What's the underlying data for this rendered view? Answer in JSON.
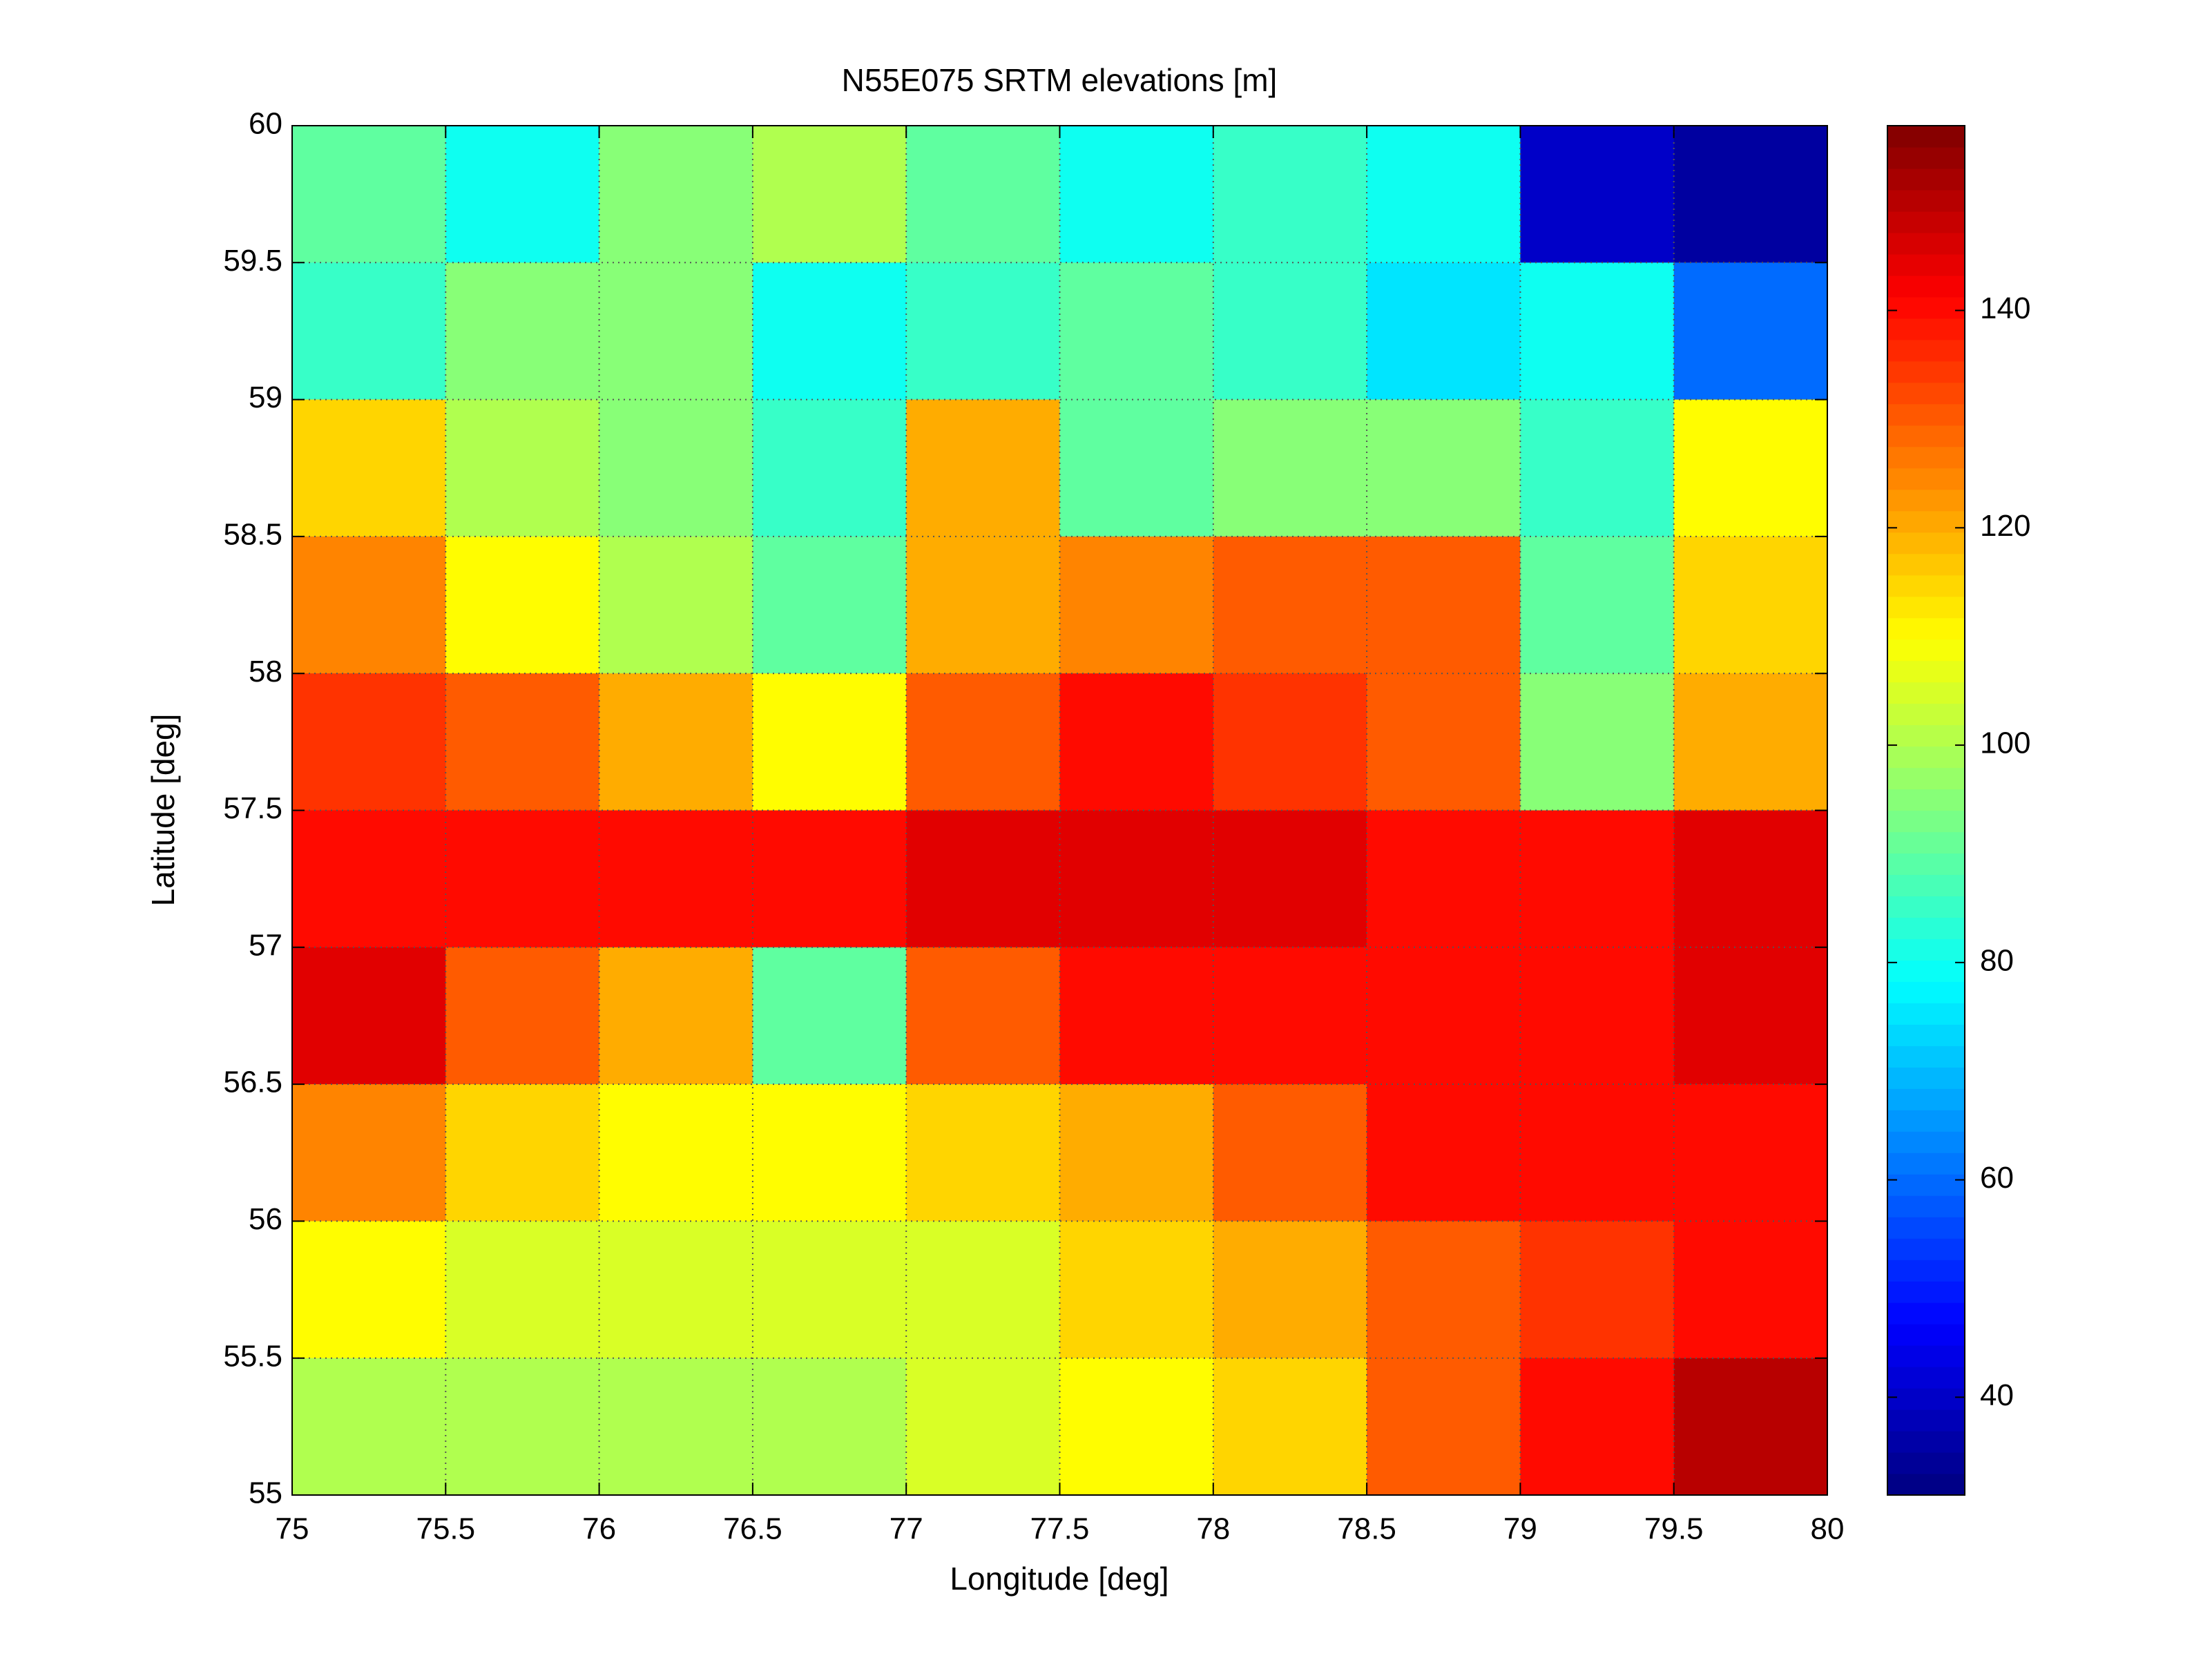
{
  "chart_data": {
    "type": "heatmap",
    "title": "N55E075 SRTM elevations [m]",
    "x_label": "Longitude [deg]",
    "y_label": "Latitude [deg]",
    "xlim": [
      75,
      80
    ],
    "ylim": [
      55,
      60
    ],
    "xticks": [
      75,
      75.5,
      76,
      76.5,
      77,
      77.5,
      78,
      78.5,
      79,
      79.5,
      80
    ],
    "yticks": [
      55,
      55.5,
      56,
      56.5,
      57,
      57.5,
      58,
      58.5,
      59,
      59.5,
      60
    ],
    "grid": true,
    "colormap": "jet",
    "clim": [
      31,
      157
    ],
    "cticks": [
      40,
      60,
      80,
      100,
      120,
      140
    ],
    "z": [
      [
        90,
        80,
        95,
        100,
        90,
        80,
        85,
        80,
        40,
        35
      ],
      [
        85,
        95,
        95,
        80,
        85,
        90,
        85,
        75,
        80,
        60
      ],
      [
        115,
        100,
        95,
        85,
        120,
        90,
        95,
        95,
        85,
        110
      ],
      [
        125,
        110,
        100,
        90,
        120,
        125,
        130,
        130,
        90,
        115
      ],
      [
        135,
        130,
        120,
        110,
        130,
        140,
        135,
        130,
        95,
        120
      ],
      [
        140,
        140,
        140,
        140,
        145,
        145,
        145,
        140,
        140,
        145
      ],
      [
        145,
        130,
        120,
        90,
        130,
        140,
        140,
        140,
        140,
        145
      ],
      [
        125,
        115,
        110,
        110,
        115,
        120,
        130,
        140,
        140,
        140
      ],
      [
        110,
        105,
        105,
        105,
        105,
        115,
        120,
        130,
        135,
        140
      ],
      [
        100,
        100,
        100,
        100,
        105,
        110,
        115,
        130,
        140,
        150
      ]
    ]
  }
}
